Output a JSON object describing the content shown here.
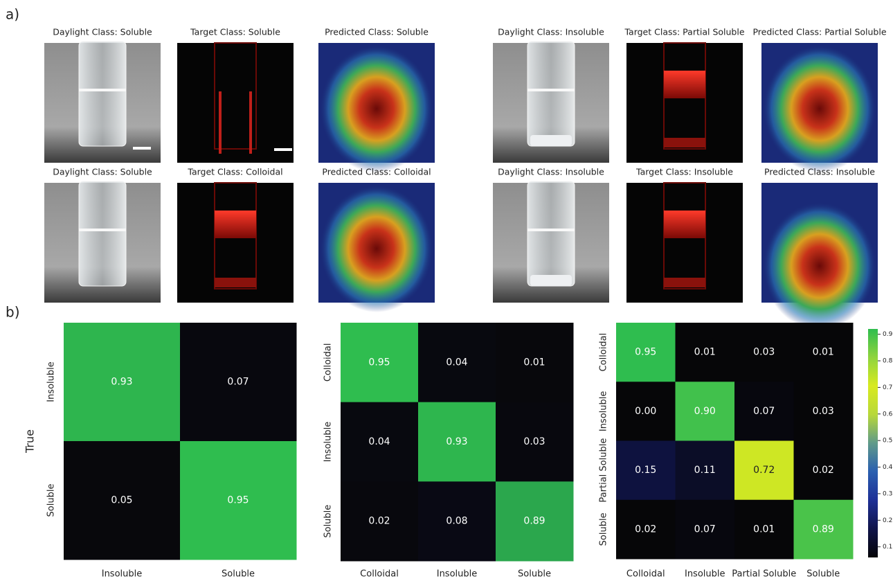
{
  "panel_a": {
    "label": "a)",
    "images": [
      "Daylight Class: Soluble",
      "Target Class: Soluble",
      "Predicted Class: Soluble",
      "Daylight Class: Insoluble",
      "Target Class: Partial Soluble",
      "Predicted Class: Partial Soluble",
      "Daylight Class: Soluble",
      "Target Class: Colloidal",
      "Predicted Class: Colloidal",
      "Daylight Class: Insoluble",
      "Target Class: Insoluble",
      "Predicted Class: Insoluble"
    ]
  },
  "panel_b": {
    "label": "b)"
  },
  "chart_data": [
    {
      "type": "heatmap",
      "ylabel": "True",
      "x_categories": [
        "Insoluble",
        "Soluble"
      ],
      "y_categories": [
        "Insoluble",
        "Soluble"
      ],
      "values": [
        [
          0.93,
          0.07
        ],
        [
          0.05,
          0.95
        ]
      ],
      "value_labels": [
        [
          "0.93",
          "0.07"
        ],
        [
          "0.05",
          "0.95"
        ]
      ],
      "clim": [
        0.05,
        0.95
      ],
      "colormap": [
        "#08080c",
        "#0e1240",
        "#2fbd4f"
      ]
    },
    {
      "type": "heatmap",
      "x_categories": [
        "Colloidal",
        "Insoluble",
        "Soluble"
      ],
      "y_categories": [
        "Colloidal",
        "Insoluble",
        "Soluble"
      ],
      "values": [
        [
          0.95,
          0.04,
          0.01
        ],
        [
          0.04,
          0.93,
          0.03
        ],
        [
          0.02,
          0.08,
          0.89
        ]
      ],
      "value_labels": [
        [
          "0.95",
          "0.04",
          "0.01"
        ],
        [
          "0.04",
          "0.93",
          "0.03"
        ],
        [
          "0.02",
          "0.08",
          "0.89"
        ]
      ],
      "clim": [
        0.01,
        0.95
      ],
      "colormap": [
        "#08080c",
        "#0e1240",
        "#2fbd4f"
      ]
    },
    {
      "type": "heatmap",
      "x_categories": [
        "Colloidal",
        "Insoluble",
        "Partial Soluble",
        "Soluble"
      ],
      "y_categories": [
        "Colloidal",
        "Insoluble",
        "Partial Soluble",
        "Soluble"
      ],
      "values": [
        [
          0.95,
          0.01,
          0.03,
          0.01
        ],
        [
          0,
          0.9,
          0.07,
          0.03
        ],
        [
          0.15,
          0.11,
          0.72,
          0.02
        ],
        [
          0.02,
          0.07,
          0.01,
          0.89
        ]
      ],
      "value_labels": [
        [
          "0.95",
          "0.01",
          "0.03",
          "0.01"
        ],
        [
          "0.00",
          "0.90",
          "0.07",
          "0.03"
        ],
        [
          "0.15",
          "0.11",
          "0.72",
          "0.02"
        ],
        [
          "0.02",
          "0.07",
          "0.01",
          "0.89"
        ]
      ],
      "clim": [
        0.06,
        0.92
      ],
      "colormap": [
        "#060608",
        "#10144a",
        "#1e3096",
        "#2a5fb0",
        "#5f9a8a",
        "#b8d83a",
        "#d8ea20",
        "#8fd43e",
        "#2fbd4f"
      ],
      "colorbar": {
        "ticks": [
          0.1,
          0.2,
          0.3,
          0.4,
          0.5,
          0.6,
          0.7,
          0.8,
          0.9
        ]
      }
    }
  ]
}
